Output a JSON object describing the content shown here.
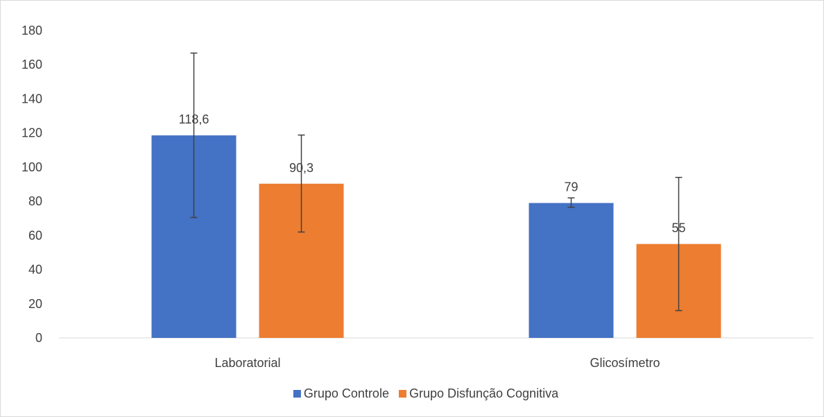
{
  "chart_data": {
    "type": "bar",
    "title": "",
    "xlabel": "",
    "ylabel": "",
    "categories": [
      "Laboratorial",
      "Glicosímetro"
    ],
    "series": [
      {
        "name": "Grupo Controle",
        "color": "#4472C4",
        "values": [
          118.6,
          79
        ],
        "data_labels": [
          "118,6",
          "79"
        ],
        "error_low": [
          70.5,
          76.5
        ],
        "error_high": [
          166.8,
          82.0
        ]
      },
      {
        "name": "Grupo Disfunção Cognitiva",
        "color": "#ED7D31",
        "values": [
          90.3,
          55
        ],
        "data_labels": [
          "90,3",
          "55"
        ],
        "error_low": [
          62.0,
          16.0
        ],
        "error_high": [
          118.8,
          94.0
        ]
      }
    ],
    "ylim": [
      0,
      180
    ],
    "yticks": [
      0,
      20,
      40,
      60,
      80,
      100,
      120,
      140,
      160,
      180
    ],
    "grid": false,
    "legend_position": "bottom"
  }
}
